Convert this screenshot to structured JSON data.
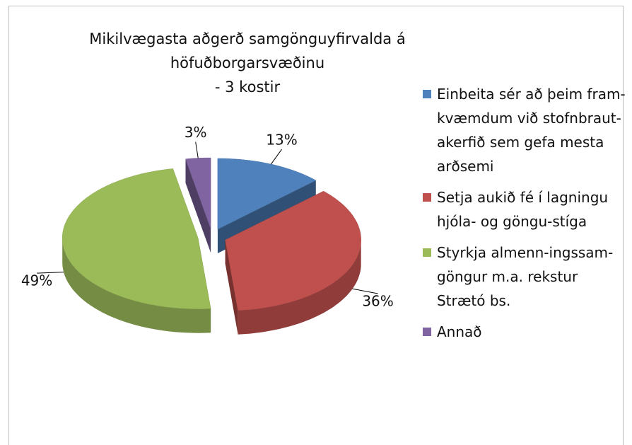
{
  "chart_data": {
    "type": "pie",
    "title": [
      "Mikilvægasta aðgerð samgönguyfirvalda á",
      "höfuðborgarsvæðinu",
      "- 3 kostir"
    ],
    "categories": [
      "Einbeita sér að þeim fram-kvæmdum við stofnbraut-akerfið sem gefa mesta arðsemi",
      "Setja aukið fé í lagningu hjóla- og göngu-stíga",
      "Styrkja almenn-ingssam-göngur m.a. rekstur Strætó bs.",
      "Annað"
    ],
    "values": [
      13,
      36,
      49,
      3
    ],
    "value_labels": [
      "13%",
      "36%",
      "49%",
      "3%"
    ],
    "colors": [
      "#4f81bd",
      "#c0504d",
      "#9bbb59",
      "#8064a2"
    ],
    "legend": "right"
  }
}
